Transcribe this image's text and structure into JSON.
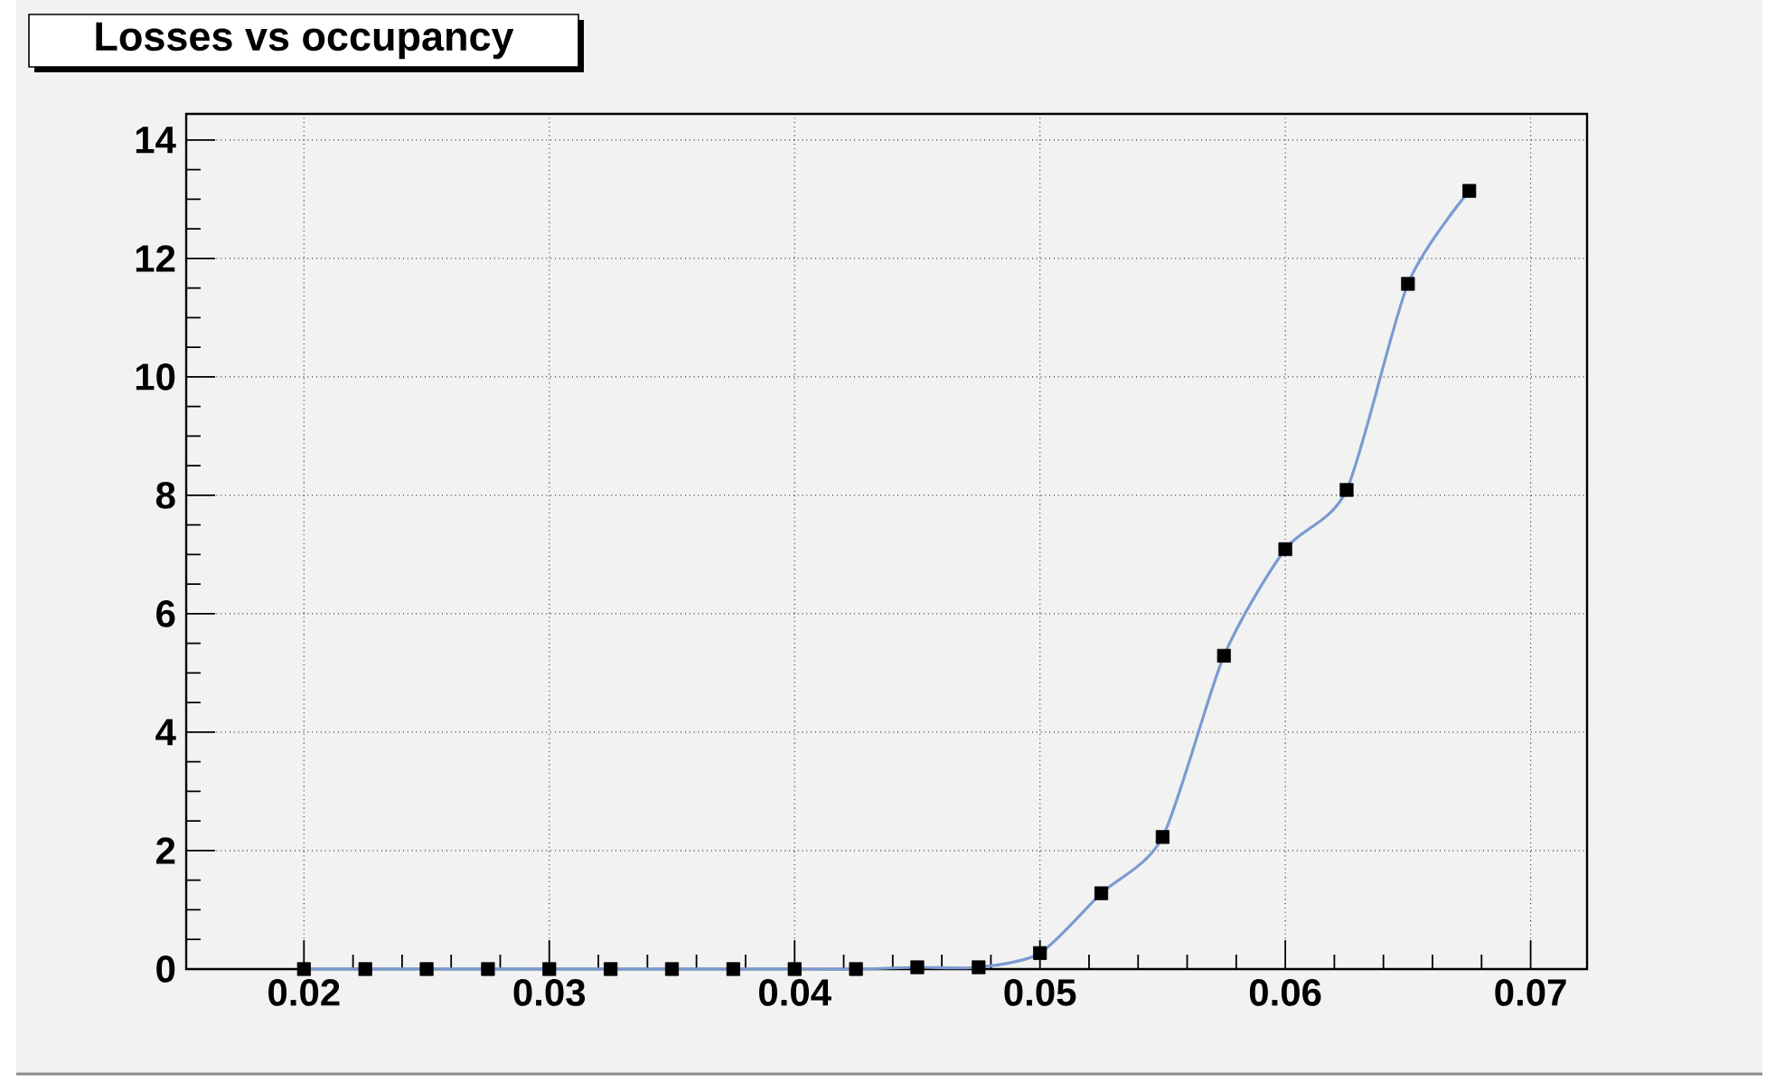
{
  "chart_data": {
    "type": "line",
    "title": "Losses vs occupancy",
    "x": [
      0.02,
      0.0225,
      0.025,
      0.0275,
      0.03,
      0.0325,
      0.035,
      0.0375,
      0.04,
      0.0425,
      0.045,
      0.0475,
      0.05,
      0.0525,
      0.055,
      0.0575,
      0.06,
      0.0625,
      0.065,
      0.0675
    ],
    "xlim": [
      0.0152,
      0.0723
    ],
    "ylim": [
      0,
      14.44
    ],
    "xticks": [
      0.02,
      0.03,
      0.04,
      0.05,
      0.06,
      0.07
    ],
    "yticks": [
      0,
      2,
      4,
      6,
      8,
      10,
      12,
      14
    ],
    "grid": true,
    "marker": "square",
    "series": [
      {
        "color": "#7b9bd0",
        "marker": "none",
        "values": [
          0,
          0,
          0,
          0,
          0,
          0,
          0,
          0,
          0,
          0,
          0.03,
          0.03,
          0.27,
          1.28,
          2.23,
          5.29,
          7.09,
          8.09,
          11.57,
          13.14
        ]
      },
      {
        "type": "scatter",
        "color": "#000000",
        "values": [
          0,
          0,
          0,
          0,
          0,
          0,
          0,
          0,
          0,
          0,
          0.03,
          0.03,
          0.27,
          1.28,
          2.23,
          5.29,
          7.09,
          8.09,
          11.57,
          13.14
        ]
      }
    ]
  }
}
